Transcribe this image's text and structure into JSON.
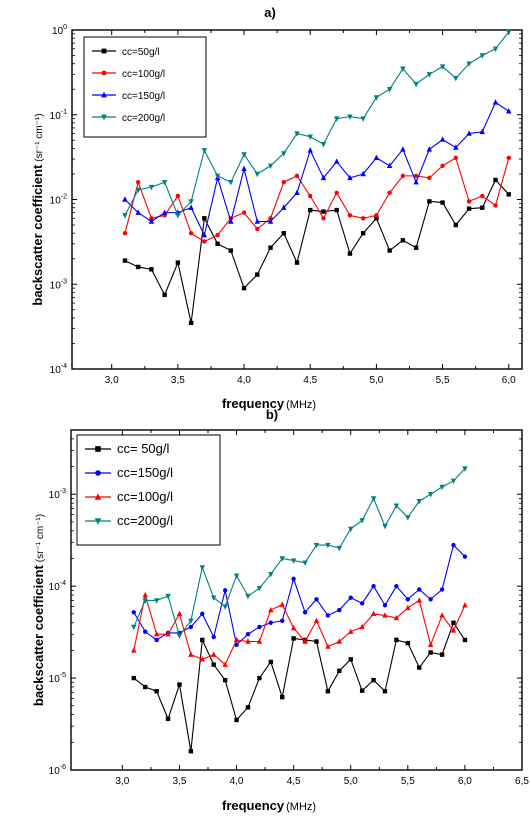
{
  "chart_data": [
    {
      "type": "line",
      "title": "a)",
      "xlabel": "frequency",
      "xunit": "(MHz)",
      "ylabel": "backscatter coefficient",
      "yunit": "(sr⁻¹ cm⁻¹)",
      "xlim": [
        2.7,
        6.1
      ],
      "ylim": [
        0.0001,
        1
      ],
      "yscale": "log",
      "xticks": [
        3.0,
        3.5,
        4.0,
        4.5,
        5.0,
        5.5,
        6.0
      ],
      "xtick_labels": [
        "3,0",
        "3,5",
        "4,0",
        "4,5",
        "5,0",
        "5,5",
        "6,0"
      ],
      "yticks": [
        0.0001,
        0.001,
        0.01,
        0.1,
        1
      ],
      "ytick_labels": [
        [
          "10",
          "-4"
        ],
        [
          "10",
          "-3"
        ],
        [
          "10",
          "-2"
        ],
        [
          "10",
          "-1"
        ],
        [
          "10",
          "0"
        ]
      ],
      "legend_position": "top-left",
      "x": [
        3.1,
        3.2,
        3.3,
        3.4,
        3.5,
        3.6,
        3.7,
        3.8,
        3.9,
        4.0,
        4.1,
        4.2,
        4.3,
        4.4,
        4.5,
        4.6,
        4.7,
        4.8,
        4.9,
        5.0,
        5.1,
        5.2,
        5.3,
        5.4,
        5.5,
        5.6,
        5.7,
        5.8,
        5.9,
        6.0
      ],
      "series": [
        {
          "name": "cc=50g/l",
          "color": "#000000",
          "marker": "square",
          "values": [
            0.0019,
            0.0016,
            0.0015,
            0.00075,
            0.0018,
            0.00035,
            0.006,
            0.003,
            0.0025,
            0.0009,
            0.0013,
            0.0027,
            0.004,
            0.0018,
            0.0075,
            0.0072,
            0.0075,
            0.0023,
            0.004,
            0.006,
            0.0025,
            0.0033,
            0.0027,
            0.0095,
            0.0092,
            0.005,
            0.0078,
            0.008,
            0.017,
            0.0115
          ]
        },
        {
          "name": "cc=100g/l",
          "color": "#ff0000",
          "marker": "circle",
          "values": [
            0.004,
            0.016,
            0.006,
            0.0065,
            0.011,
            0.004,
            0.0032,
            0.0038,
            0.006,
            0.007,
            0.0045,
            0.006,
            0.016,
            0.019,
            0.011,
            0.006,
            0.012,
            0.0065,
            0.006,
            0.0065,
            0.012,
            0.019,
            0.019,
            0.018,
            0.025,
            0.031,
            0.0095,
            0.011,
            0.0085,
            0.031
          ]
        },
        {
          "name": "cc=150g/l",
          "color": "#0000ff",
          "marker": "triangle",
          "values": [
            0.01,
            0.007,
            0.0055,
            0.007,
            0.007,
            0.008,
            0.0038,
            0.018,
            0.0055,
            0.023,
            0.0055,
            0.0055,
            0.008,
            0.012,
            0.038,
            0.018,
            0.028,
            0.018,
            0.02,
            0.031,
            0.025,
            0.039,
            0.016,
            0.039,
            0.051,
            0.041,
            0.06,
            0.063,
            0.14,
            0.11
          ]
        },
        {
          "name": "cc=200g/l",
          "color": "#008080",
          "marker": "triangle-down",
          "values": [
            0.0065,
            0.013,
            0.014,
            0.016,
            0.0065,
            0.0095,
            0.038,
            0.019,
            0.016,
            0.034,
            0.02,
            0.025,
            0.035,
            0.06,
            0.055,
            0.045,
            0.09,
            0.095,
            0.09,
            0.16,
            0.2,
            0.35,
            0.23,
            0.3,
            0.37,
            0.27,
            0.4,
            0.5,
            0.6,
            0.95
          ]
        }
      ]
    },
    {
      "type": "line",
      "title": "b)",
      "xlabel": "frequency",
      "xunit": "(MHz)",
      "ylabel": "backscatter coefficient",
      "yunit": "(sr⁻¹ cm⁻¹)",
      "xlim": [
        2.55,
        6.5
      ],
      "ylim": [
        1e-06,
        0.005
      ],
      "yscale": "log",
      "xticks": [
        3.0,
        3.5,
        4.0,
        4.5,
        5.0,
        5.5,
        6.0,
        6.5
      ],
      "xtick_labels": [
        "3,0",
        "3,5",
        "4,0",
        "4,5",
        "5,0",
        "5,5",
        "6,0",
        "6,5"
      ],
      "yticks": [
        1e-06,
        1e-05,
        0.0001,
        0.001
      ],
      "ytick_labels": [
        [
          "10",
          "-6"
        ],
        [
          "10",
          "-5"
        ],
        [
          "10",
          "-4"
        ],
        [
          "10",
          "-3"
        ]
      ],
      "legend_position": "top-left",
      "x": [
        3.1,
        3.2,
        3.3,
        3.4,
        3.5,
        3.6,
        3.7,
        3.8,
        3.9,
        4.0,
        4.1,
        4.2,
        4.3,
        4.4,
        4.5,
        4.6,
        4.7,
        4.8,
        4.9,
        5.0,
        5.1,
        5.2,
        5.3,
        5.4,
        5.5,
        5.6,
        5.7,
        5.8,
        5.9,
        6.0
      ],
      "series": [
        {
          "name": "cc= 50g/l",
          "color": "#000000",
          "marker": "square",
          "values": [
            1e-05,
            8e-06,
            7.2e-06,
            3.6e-06,
            8.5e-06,
            1.6e-06,
            2.6e-05,
            1.4e-05,
            9.5e-06,
            3.5e-06,
            4.8e-06,
            1e-05,
            1.5e-05,
            6.2e-06,
            2.7e-05,
            2.6e-05,
            2.5e-05,
            7.2e-06,
            1.2e-05,
            1.6e-05,
            7.3e-06,
            9.5e-06,
            7.2e-06,
            2.6e-05,
            2.4e-05,
            1.3e-05,
            1.9e-05,
            1.8e-05,
            4e-05,
            2.6e-05
          ]
        },
        {
          "name": "cc=150g/l",
          "color": "#0000ff",
          "marker": "circle",
          "values": [
            5.2e-05,
            3.2e-05,
            2.6e-05,
            3.1e-05,
            3.1e-05,
            3.6e-05,
            5e-05,
            2.8e-05,
            9e-05,
            2.3e-05,
            3e-05,
            3.6e-05,
            4e-05,
            4.2e-05,
            0.00012,
            5.2e-05,
            7.2e-05,
            4.8e-05,
            5.5e-05,
            7.5e-05,
            6.5e-05,
            0.0001,
            6.2e-05,
            0.0001,
            7.2e-05,
            9.2e-05,
            7.2e-05,
            9.2e-05,
            0.00028,
            0.00021
          ]
        },
        {
          "name": "cc=100g/l",
          "color": "#ff0000",
          "marker": "triangle",
          "values": [
            2e-05,
            8e-05,
            3e-05,
            3e-05,
            5e-05,
            1.8e-05,
            1.6e-05,
            1.8e-05,
            1.4e-05,
            2.6e-05,
            2.5e-05,
            2.5e-05,
            5.5e-05,
            6.3e-05,
            3.5e-05,
            2.5e-05,
            4.2e-05,
            2.2e-05,
            2.5e-05,
            3.2e-05,
            3.6e-05,
            5e-05,
            4.8e-05,
            4.5e-05,
            5.8e-05,
            7e-05,
            2.3e-05,
            4.8e-05,
            3.3e-05,
            6.2e-05
          ]
        },
        {
          "name": "cc=200g/l",
          "color": "#008080",
          "marker": "triangle-down",
          "values": [
            3.6e-05,
            7e-05,
            7e-05,
            7.8e-05,
            2.9e-05,
            4.2e-05,
            0.00016,
            7.5e-05,
            6e-05,
            0.00013,
            7.8e-05,
            9.5e-05,
            0.000135,
            0.0002,
            0.00019,
            0.00018,
            0.00028,
            0.00028,
            0.00026,
            0.00042,
            0.00052,
            0.0009,
            0.00045,
            0.00075,
            0.00056,
            0.00084,
            0.001,
            0.0012,
            0.0014,
            0.0019
          ]
        }
      ]
    }
  ]
}
